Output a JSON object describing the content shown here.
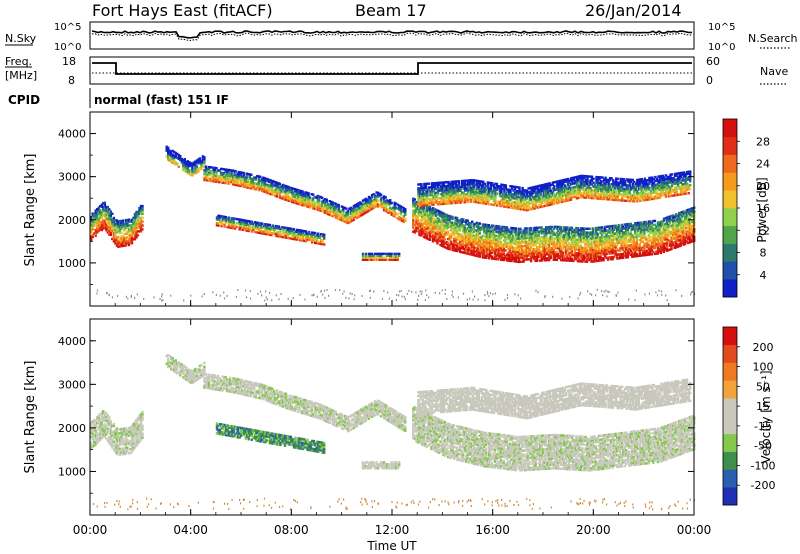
{
  "header": {
    "station": "Fort Hays East (fitACF)",
    "beam": "Beam 17",
    "date": "26/Jan/2014"
  },
  "status_panels": {
    "nsky": {
      "label": "N.Sky",
      "ticks": [
        "10^5",
        "10^0"
      ]
    },
    "nsearch": {
      "label": "N.Search",
      "ticks": [
        "10^5",
        "10^0"
      ]
    },
    "freq": {
      "label_line1": "Freq.",
      "label_line2": "[MHz]",
      "ticks": [
        "18",
        "8"
      ]
    },
    "nave": {
      "label": "Nave",
      "ticks": [
        "60",
        "0"
      ]
    },
    "cpid": {
      "label": "CPID",
      "value": "normal (fast) 151 IF"
    }
  },
  "colors": {
    "power": [
      "#1020c8",
      "#1f4fa8",
      "#2c7a6c",
      "#4fa64a",
      "#8fd14a",
      "#f2c12e",
      "#f39a1f",
      "#ef6a1c",
      "#e02d17",
      "#d40f0f"
    ],
    "velocity": [
      "#1f2fb2",
      "#2a5fb0",
      "#3f8f4c",
      "#84c84c",
      "#c8c8bc",
      "#c8c8bc",
      "#f2a33a",
      "#ef7a22",
      "#e24b1b",
      "#d40f0f"
    ]
  },
  "chart_data": [
    {
      "type": "heatmap",
      "panel": "power",
      "xlabel": "",
      "ylabel": "Slant Range [km]",
      "x_ticks": [
        "00:00",
        "04:00",
        "08:00",
        "12:00",
        "16:00",
        "20:00",
        "00:00"
      ],
      "y_ticks": [
        "1000",
        "2000",
        "3000",
        "4000"
      ],
      "ylim": [
        0,
        4500
      ],
      "xlim_hours": [
        0,
        24
      ],
      "colorbar_label": "Power [dB]",
      "colorbar_ticks": [
        "28",
        "24",
        "20",
        "16",
        "12",
        "8",
        "4"
      ],
      "clim": [
        0,
        30
      ],
      "bands": [
        {
          "t0": 0.0,
          "t1": 2.1,
          "r_lo": [
            1500,
            1800,
            1350,
            1400,
            1800
          ],
          "width": 600,
          "level": 0.55
        },
        {
          "t0": 3.0,
          "t1": 4.5,
          "r_lo": [
            3400,
            3200,
            3000,
            3200
          ],
          "width": 300,
          "level": 0.2
        },
        {
          "t0": 4.5,
          "t1": 12.5,
          "r_lo": [
            2900,
            2800,
            2650,
            2400,
            2200,
            1900,
            2300,
            1900
          ],
          "width": 350,
          "level": 0.4
        },
        {
          "t0": 5.0,
          "t1": 9.3,
          "r_lo": [
            1850,
            1700,
            1550,
            1400
          ],
          "width": 250,
          "level": 0.45
        },
        {
          "t0": 10.8,
          "t1": 12.3,
          "r_lo": [
            1050,
            1050
          ],
          "width": 150,
          "level": 0.45
        },
        {
          "t0": 12.8,
          "t1": 24.0,
          "r_lo": [
            1700,
            1300,
            1100,
            1000,
            1050,
            1000,
            1100,
            1200,
            1500
          ],
          "width": 800,
          "level": 0.6
        },
        {
          "t0": 13.0,
          "t1": 23.8,
          "r_lo": [
            2300,
            2400,
            2200,
            2500,
            2400,
            2600
          ],
          "width": 500,
          "level": 0.35
        }
      ]
    },
    {
      "type": "heatmap",
      "panel": "velocity",
      "xlabel": "Time UT",
      "ylabel": "Slant Range [km]",
      "x_ticks": [
        "00:00",
        "04:00",
        "08:00",
        "12:00",
        "16:00",
        "20:00",
        "00:00"
      ],
      "y_ticks": [
        "1000",
        "2000",
        "3000",
        "4000"
      ],
      "ylim": [
        0,
        4500
      ],
      "xlim_hours": [
        0,
        24
      ],
      "colorbar_label": "Velocity [m s⁻¹]",
      "colorbar_ticks": [
        "200",
        "100",
        "50",
        "15",
        "-15",
        "-50",
        "-100",
        "-200"
      ],
      "clim": [
        -250,
        250
      ],
      "bands": [
        {
          "t0": 0.0,
          "t1": 2.1,
          "r_lo": [
            1500,
            1800,
            1350,
            1400,
            1800
          ],
          "width": 600,
          "level": 0.45
        },
        {
          "t0": 3.0,
          "t1": 4.5,
          "r_lo": [
            3400,
            3200,
            3000,
            3200
          ],
          "width": 300,
          "level": 0.45
        },
        {
          "t0": 4.5,
          "t1": 12.5,
          "r_lo": [
            2900,
            2800,
            2650,
            2400,
            2200,
            1900,
            2300,
            1900
          ],
          "width": 350,
          "level": 0.45
        },
        {
          "t0": 5.0,
          "t1": 9.3,
          "r_lo": [
            1850,
            1700,
            1550,
            1400
          ],
          "width": 250,
          "level": 0.25
        },
        {
          "t0": 10.8,
          "t1": 12.3,
          "r_lo": [
            1050,
            1050
          ],
          "width": 150,
          "level": 0.45
        },
        {
          "t0": 12.8,
          "t1": 24.0,
          "r_lo": [
            1700,
            1300,
            1100,
            1000,
            1050,
            1000,
            1100,
            1200,
            1500
          ],
          "width": 800,
          "level": 0.45
        },
        {
          "t0": 13.0,
          "t1": 23.8,
          "r_lo": [
            2300,
            2400,
            2200,
            2500,
            2400,
            2600
          ],
          "width": 500,
          "level": 0.5
        }
      ]
    }
  ]
}
